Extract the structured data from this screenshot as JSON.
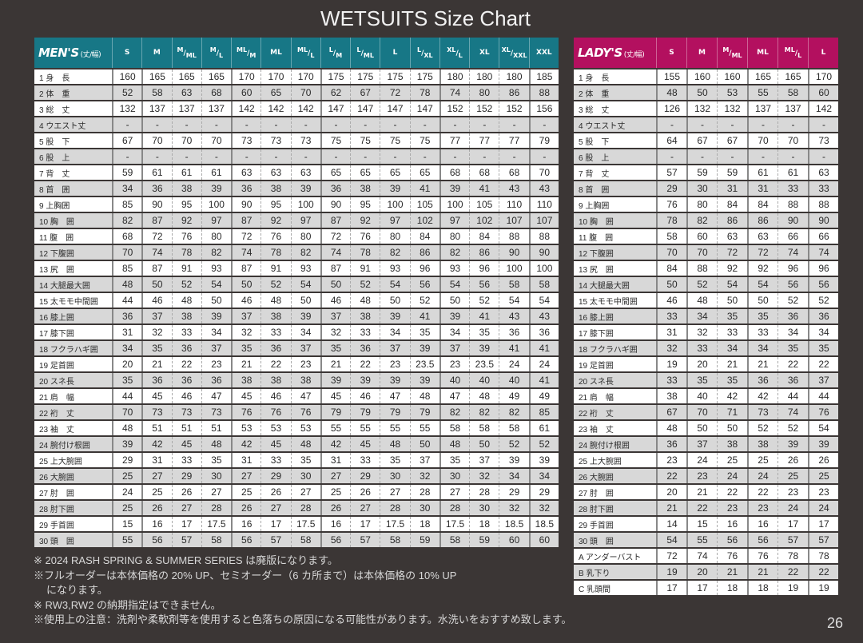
{
  "title": "WETSUITS Size Chart",
  "colors": {
    "background": "#3b3635",
    "mens_header": "#177786",
    "ladys_header": "#b3105f",
    "row_alt": "#d8d8d8"
  },
  "mens": {
    "label": "MEN'S",
    "unit": "(丈/幅)",
    "columns": [
      {
        "a": "S"
      },
      {
        "a": "M"
      },
      {
        "a": "M",
        "b": "ML"
      },
      {
        "a": "M",
        "b": "L"
      },
      {
        "a": "ML",
        "b": "M"
      },
      {
        "a": "ML"
      },
      {
        "a": "ML",
        "b": "L"
      },
      {
        "a": "L",
        "b": "M"
      },
      {
        "a": "L",
        "b": "ML"
      },
      {
        "a": "L"
      },
      {
        "a": "L",
        "b": "XL"
      },
      {
        "a": "XL",
        "b": "L"
      },
      {
        "a": "XL"
      },
      {
        "a": "XL",
        "b": "XXL"
      },
      {
        "a": "XXL"
      }
    ],
    "groups_start": [
      0,
      1,
      4,
      7,
      11,
      14
    ],
    "rows": [
      {
        "label": "1 身　長",
        "values": [
          "160",
          "165",
          "165",
          "165",
          "170",
          "170",
          "170",
          "175",
          "175",
          "175",
          "175",
          "180",
          "180",
          "180",
          "185"
        ]
      },
      {
        "label": "2 体　重",
        "values": [
          "52",
          "58",
          "63",
          "68",
          "60",
          "65",
          "70",
          "62",
          "67",
          "72",
          "78",
          "74",
          "80",
          "86",
          "88"
        ]
      },
      {
        "label": "3 総　丈",
        "values": [
          "132",
          "137",
          "137",
          "137",
          "142",
          "142",
          "142",
          "147",
          "147",
          "147",
          "147",
          "152",
          "152",
          "152",
          "156"
        ]
      },
      {
        "label": "4 ウエスト丈",
        "values": [
          "-",
          "-",
          "-",
          "-",
          "-",
          "-",
          "-",
          "-",
          "-",
          "-",
          "-",
          "-",
          "-",
          "-",
          "-"
        ]
      },
      {
        "label": "5 股　下",
        "values": [
          "67",
          "70",
          "70",
          "70",
          "73",
          "73",
          "73",
          "75",
          "75",
          "75",
          "75",
          "77",
          "77",
          "77",
          "79"
        ]
      },
      {
        "label": "6 股　上",
        "values": [
          "-",
          "-",
          "-",
          "-",
          "-",
          "-",
          "-",
          "-",
          "-",
          "-",
          "-",
          "-",
          "-",
          "-",
          "-"
        ]
      },
      {
        "label": "7 背　丈",
        "values": [
          "59",
          "61",
          "61",
          "61",
          "63",
          "63",
          "63",
          "65",
          "65",
          "65",
          "65",
          "68",
          "68",
          "68",
          "70"
        ]
      },
      {
        "label": "8 首　囲",
        "values": [
          "34",
          "36",
          "38",
          "39",
          "36",
          "38",
          "39",
          "36",
          "38",
          "39",
          "41",
          "39",
          "41",
          "43",
          "43"
        ]
      },
      {
        "label": "9 上胸囲",
        "values": [
          "85",
          "90",
          "95",
          "100",
          "90",
          "95",
          "100",
          "90",
          "95",
          "100",
          "105",
          "100",
          "105",
          "110",
          "110"
        ]
      },
      {
        "label": "10 胸　囲",
        "values": [
          "82",
          "87",
          "92",
          "97",
          "87",
          "92",
          "97",
          "87",
          "92",
          "97",
          "102",
          "97",
          "102",
          "107",
          "107"
        ]
      },
      {
        "label": "11 腹　囲",
        "values": [
          "68",
          "72",
          "76",
          "80",
          "72",
          "76",
          "80",
          "72",
          "76",
          "80",
          "84",
          "80",
          "84",
          "88",
          "88"
        ]
      },
      {
        "label": "12 下腹囲",
        "values": [
          "70",
          "74",
          "78",
          "82",
          "74",
          "78",
          "82",
          "74",
          "78",
          "82",
          "86",
          "82",
          "86",
          "90",
          "90"
        ]
      },
      {
        "label": "13 尻　囲",
        "values": [
          "85",
          "87",
          "91",
          "93",
          "87",
          "91",
          "93",
          "87",
          "91",
          "93",
          "96",
          "93",
          "96",
          "100",
          "100"
        ]
      },
      {
        "label": "14 大腿最大囲",
        "values": [
          "48",
          "50",
          "52",
          "54",
          "50",
          "52",
          "54",
          "50",
          "52",
          "54",
          "56",
          "54",
          "56",
          "58",
          "58"
        ]
      },
      {
        "label": "15 太モモ中間囲",
        "values": [
          "44",
          "46",
          "48",
          "50",
          "46",
          "48",
          "50",
          "46",
          "48",
          "50",
          "52",
          "50",
          "52",
          "54",
          "54"
        ]
      },
      {
        "label": "16 膝上囲",
        "values": [
          "36",
          "37",
          "38",
          "39",
          "37",
          "38",
          "39",
          "37",
          "38",
          "39",
          "41",
          "39",
          "41",
          "43",
          "43"
        ]
      },
      {
        "label": "17 膝下囲",
        "values": [
          "31",
          "32",
          "33",
          "34",
          "32",
          "33",
          "34",
          "32",
          "33",
          "34",
          "35",
          "34",
          "35",
          "36",
          "36"
        ]
      },
      {
        "label": "18 フクラハギ囲",
        "values": [
          "34",
          "35",
          "36",
          "37",
          "35",
          "36",
          "37",
          "35",
          "36",
          "37",
          "39",
          "37",
          "39",
          "41",
          "41"
        ]
      },
      {
        "label": "19 足首囲",
        "values": [
          "20",
          "21",
          "22",
          "23",
          "21",
          "22",
          "23",
          "21",
          "22",
          "23",
          "23.5",
          "23",
          "23.5",
          "24",
          "24"
        ]
      },
      {
        "label": "20 スネ長",
        "values": [
          "35",
          "36",
          "36",
          "36",
          "38",
          "38",
          "38",
          "39",
          "39",
          "39",
          "39",
          "40",
          "40",
          "40",
          "41"
        ]
      },
      {
        "label": "21 肩　幅",
        "values": [
          "44",
          "45",
          "46",
          "47",
          "45",
          "46",
          "47",
          "45",
          "46",
          "47",
          "48",
          "47",
          "48",
          "49",
          "49"
        ]
      },
      {
        "label": "22 裄　丈",
        "values": [
          "70",
          "73",
          "73",
          "73",
          "76",
          "76",
          "76",
          "79",
          "79",
          "79",
          "79",
          "82",
          "82",
          "82",
          "85"
        ]
      },
      {
        "label": "23 袖　丈",
        "values": [
          "48",
          "51",
          "51",
          "51",
          "53",
          "53",
          "53",
          "55",
          "55",
          "55",
          "55",
          "58",
          "58",
          "58",
          "61"
        ]
      },
      {
        "label": "24 腕付け根囲",
        "values": [
          "39",
          "42",
          "45",
          "48",
          "42",
          "45",
          "48",
          "42",
          "45",
          "48",
          "50",
          "48",
          "50",
          "52",
          "52"
        ]
      },
      {
        "label": "25 上大腕囲",
        "values": [
          "29",
          "31",
          "33",
          "35",
          "31",
          "33",
          "35",
          "31",
          "33",
          "35",
          "37",
          "35",
          "37",
          "39",
          "39"
        ]
      },
      {
        "label": "26 大腕囲",
        "values": [
          "25",
          "27",
          "29",
          "30",
          "27",
          "29",
          "30",
          "27",
          "29",
          "30",
          "32",
          "30",
          "32",
          "34",
          "34"
        ]
      },
      {
        "label": "27 肘　囲",
        "values": [
          "24",
          "25",
          "26",
          "27",
          "25",
          "26",
          "27",
          "25",
          "26",
          "27",
          "28",
          "27",
          "28",
          "29",
          "29"
        ]
      },
      {
        "label": "28 肘下囲",
        "values": [
          "25",
          "26",
          "27",
          "28",
          "26",
          "27",
          "28",
          "26",
          "27",
          "28",
          "30",
          "28",
          "30",
          "32",
          "32"
        ]
      },
      {
        "label": "29 手首囲",
        "values": [
          "15",
          "16",
          "17",
          "17.5",
          "16",
          "17",
          "17.5",
          "16",
          "17",
          "17.5",
          "18",
          "17.5",
          "18",
          "18.5",
          "18.5"
        ]
      },
      {
        "label": "30 頭　囲",
        "values": [
          "55",
          "56",
          "57",
          "58",
          "56",
          "57",
          "58",
          "56",
          "57",
          "58",
          "59",
          "58",
          "59",
          "60",
          "60"
        ]
      }
    ]
  },
  "ladys": {
    "label": "LADY'S",
    "unit": "(丈/幅)",
    "columns": [
      {
        "a": "S"
      },
      {
        "a": "M"
      },
      {
        "a": "M",
        "b": "ML"
      },
      {
        "a": "ML"
      },
      {
        "a": "ML",
        "b": "L"
      },
      {
        "a": "L"
      }
    ],
    "groups_start": [
      0,
      1,
      3,
      5
    ],
    "rows": [
      {
        "label": "1 身　長",
        "values": [
          "155",
          "160",
          "160",
          "165",
          "165",
          "170"
        ]
      },
      {
        "label": "2 体　重",
        "values": [
          "48",
          "50",
          "53",
          "55",
          "58",
          "60"
        ]
      },
      {
        "label": "3 総　丈",
        "values": [
          "126",
          "132",
          "132",
          "137",
          "137",
          "142"
        ]
      },
      {
        "label": "4 ウエスト丈",
        "values": [
          "-",
          "-",
          "-",
          "-",
          "-",
          "-"
        ]
      },
      {
        "label": "5 股　下",
        "values": [
          "64",
          "67",
          "67",
          "70",
          "70",
          "73"
        ]
      },
      {
        "label": "6 股　上",
        "values": [
          "-",
          "-",
          "-",
          "-",
          "-",
          "-"
        ]
      },
      {
        "label": "7 背　丈",
        "values": [
          "57",
          "59",
          "59",
          "61",
          "61",
          "63"
        ]
      },
      {
        "label": "8 首　囲",
        "values": [
          "29",
          "30",
          "31",
          "31",
          "33",
          "33"
        ]
      },
      {
        "label": "9 上胸囲",
        "values": [
          "76",
          "80",
          "84",
          "84",
          "88",
          "88"
        ]
      },
      {
        "label": "10 胸　囲",
        "values": [
          "78",
          "82",
          "86",
          "86",
          "90",
          "90"
        ]
      },
      {
        "label": "11 腹　囲",
        "values": [
          "58",
          "60",
          "63",
          "63",
          "66",
          "66"
        ]
      },
      {
        "label": "12 下腹囲",
        "values": [
          "70",
          "70",
          "72",
          "72",
          "74",
          "74"
        ]
      },
      {
        "label": "13 尻　囲",
        "values": [
          "84",
          "88",
          "92",
          "92",
          "96",
          "96"
        ]
      },
      {
        "label": "14 大腿最大囲",
        "values": [
          "50",
          "52",
          "54",
          "54",
          "56",
          "56"
        ]
      },
      {
        "label": "15 太モモ中間囲",
        "values": [
          "46",
          "48",
          "50",
          "50",
          "52",
          "52"
        ]
      },
      {
        "label": "16 膝上囲",
        "values": [
          "33",
          "34",
          "35",
          "35",
          "36",
          "36"
        ]
      },
      {
        "label": "17 膝下囲",
        "values": [
          "31",
          "32",
          "33",
          "33",
          "34",
          "34"
        ]
      },
      {
        "label": "18 フクラハギ囲",
        "values": [
          "32",
          "33",
          "34",
          "34",
          "35",
          "35"
        ]
      },
      {
        "label": "19 足首囲",
        "values": [
          "19",
          "20",
          "21",
          "21",
          "22",
          "22"
        ]
      },
      {
        "label": "20 スネ長",
        "values": [
          "33",
          "35",
          "35",
          "36",
          "36",
          "37"
        ]
      },
      {
        "label": "21 肩　幅",
        "values": [
          "38",
          "40",
          "42",
          "42",
          "44",
          "44"
        ]
      },
      {
        "label": "22 裄　丈",
        "values": [
          "67",
          "70",
          "71",
          "73",
          "74",
          "76"
        ]
      },
      {
        "label": "23 袖　丈",
        "values": [
          "48",
          "50",
          "50",
          "52",
          "52",
          "54"
        ]
      },
      {
        "label": "24 腕付け根囲",
        "values": [
          "36",
          "37",
          "38",
          "38",
          "39",
          "39"
        ]
      },
      {
        "label": "25 上大腕囲",
        "values": [
          "23",
          "24",
          "25",
          "25",
          "26",
          "26"
        ]
      },
      {
        "label": "26 大腕囲",
        "values": [
          "22",
          "23",
          "24",
          "24",
          "25",
          "25"
        ]
      },
      {
        "label": "27 肘　囲",
        "values": [
          "20",
          "21",
          "22",
          "22",
          "23",
          "23"
        ]
      },
      {
        "label": "28 肘下囲",
        "values": [
          "21",
          "22",
          "23",
          "23",
          "24",
          "24"
        ]
      },
      {
        "label": "29 手首囲",
        "values": [
          "14",
          "15",
          "16",
          "16",
          "17",
          "17"
        ]
      },
      {
        "label": "30 頭　囲",
        "values": [
          "54",
          "55",
          "56",
          "56",
          "57",
          "57"
        ]
      },
      {
        "label": "A アンダーバスト",
        "values": [
          "72",
          "74",
          "76",
          "76",
          "78",
          "78"
        ]
      },
      {
        "label": "B 乳下り",
        "values": [
          "19",
          "20",
          "21",
          "21",
          "22",
          "22"
        ]
      },
      {
        "label": "C 乳頭間",
        "values": [
          "17",
          "17",
          "18",
          "18",
          "19",
          "19"
        ]
      }
    ]
  },
  "notes": [
    "※ 2024 RASH SPRING & SUMMER SERIES は廃版になります。",
    "※フルオーダーは本体価格の 20% UP、セミオーダー（6 カ所まで）は本体価格の 10% UP",
    "になります。",
    "※ RW3,RW2 の納期指定はできません。",
    "※使用上の注意：洗剤や柔軟剤等を使用すると色落ちの原因になる可能性があります。水洗いをおすすめ致します。"
  ],
  "page_number": "26"
}
